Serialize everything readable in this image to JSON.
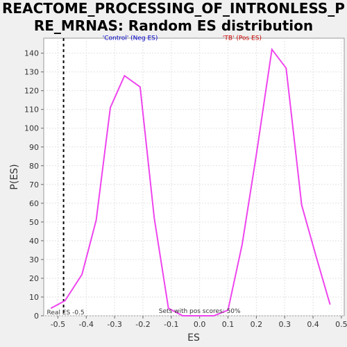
{
  "chart_data": {
    "type": "line",
    "title_lines": [
      "REACTOME_PROCESSING_OF_INTRONLESS_P",
      "RE_MRNAS: Random ES distribution"
    ],
    "xlabel": "ES",
    "ylabel": "P(ES)",
    "xlim": [
      -0.55,
      0.51
    ],
    "ylim": [
      0,
      148
    ],
    "xticks": [
      -0.5,
      -0.4,
      -0.3,
      -0.2,
      -0.1,
      0.0,
      0.1,
      0.2,
      0.3,
      0.4,
      0.5
    ],
    "xtick_labels": [
      "-0.5",
      "-0.4",
      "-0.3",
      "-0.2",
      "-0.1",
      "0.0",
      "0.1",
      "0.2",
      "0.3",
      "0.4",
      "0.5"
    ],
    "yticks": [
      0,
      10,
      20,
      30,
      40,
      50,
      60,
      70,
      80,
      90,
      100,
      110,
      120,
      130,
      140
    ],
    "ytick_labels": [
      "0",
      "10",
      "20",
      "30",
      "40",
      "50",
      "60",
      "70",
      "80",
      "90",
      "100",
      "110",
      "120",
      "130",
      "140"
    ],
    "grid": true,
    "series": [
      {
        "color": "#ee44ee",
        "x": [
          -0.525,
          -0.475,
          -0.415,
          -0.365,
          -0.315,
          -0.265,
          -0.21,
          -0.16,
          -0.11,
          -0.06,
          0.0,
          0.05,
          0.1,
          0.15,
          0.2,
          0.255,
          0.305,
          0.36,
          0.41,
          0.46
        ],
        "y": [
          4,
          8,
          22,
          51,
          111,
          128,
          122,
          52,
          4,
          0,
          0,
          0,
          3,
          38,
          86,
          142,
          132,
          59,
          32,
          6
        ]
      }
    ],
    "vline": {
      "x": -0.48,
      "label": "Real ES -0.5"
    },
    "annotations": [
      {
        "text": "'Control' (Neg ES)",
        "x": -0.245,
        "y": 147,
        "color": "#0000cc"
      },
      {
        "text": "'TB' (Pos ES)",
        "x": 0.15,
        "y": 147,
        "color": "#cc0000"
      },
      {
        "text": "Sets with pos scores: 50%",
        "x": 0.0,
        "y": 1.5,
        "color": "#333333"
      }
    ]
  }
}
